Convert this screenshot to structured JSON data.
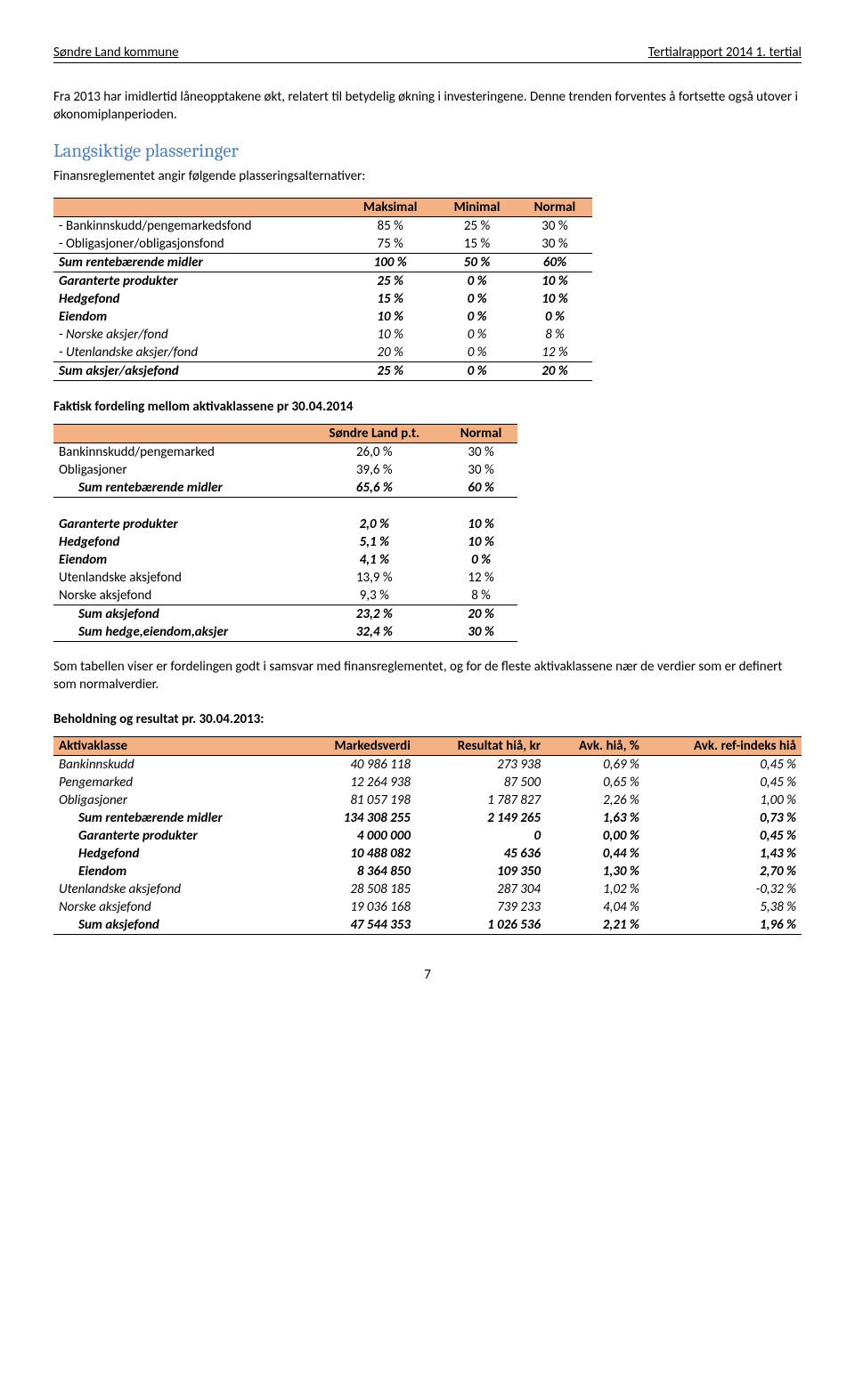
{
  "header": {
    "left": "Søndre Land kommune",
    "right": "Tertialrapport 2014 1. tertial"
  },
  "intro": "Fra 2013 har imidlertid låneopptakene økt, relatert til betydelig økning i investeringene. Denne trenden forventes å fortsette også utover i økonomiplanperioden.",
  "section_title": "Langsiktige plasseringer",
  "section_sub": "Finansreglementet angir følgende plasseringsalternativer:",
  "t1": {
    "cols": [
      "",
      "Maksimal",
      "Minimal",
      "Normal"
    ],
    "rows": [
      {
        "label": "- Bankinnskudd/pengemarkedsfond",
        "v": [
          "85 %",
          "25 %",
          "30 %"
        ],
        "style": ""
      },
      {
        "label": "- Obligasjoner/obligasjonsfond",
        "v": [
          "75 %",
          "15 %",
          "30 %"
        ],
        "style": ""
      },
      {
        "label": "Sum rentebærende midler",
        "v": [
          "100 %",
          "50 %",
          "60%"
        ],
        "style": "bolditalic btbb"
      },
      {
        "label": "Garanterte produkter",
        "v": [
          "25 %",
          "0 %",
          "10 %"
        ],
        "style": "bolditalic"
      },
      {
        "label": "Hedgefond",
        "v": [
          "15 %",
          "0 %",
          "10 %"
        ],
        "style": "bolditalic"
      },
      {
        "label": "Eiendom",
        "v": [
          "10 %",
          "0 %",
          "0 %"
        ],
        "style": "bolditalic"
      },
      {
        "label": "- Norske aksjer/fond",
        "v": [
          "10 %",
          "0 %",
          "8 %"
        ],
        "style": "italic"
      },
      {
        "label": "- Utenlandske aksjer/fond",
        "v": [
          "20 %",
          "0 %",
          "12 %"
        ],
        "style": "italic"
      },
      {
        "label": "Sum aksjer/aksjefond",
        "v": [
          "25 %",
          "0 %",
          "20 %"
        ],
        "style": "bolditalic btbb"
      }
    ]
  },
  "t2_caption": "Faktisk fordeling mellom aktivaklassene pr 30.04.2014",
  "t2": {
    "cols": [
      "",
      "Søndre Land p.t.",
      "Normal"
    ],
    "rows": [
      {
        "label": "Bankinnskudd/pengemarked",
        "v": [
          "26,0 %",
          "30 %"
        ],
        "style": ""
      },
      {
        "label": "Obligasjoner",
        "v": [
          "39,6 %",
          "30 %"
        ],
        "style": ""
      },
      {
        "label": "Sum rentebærende midler",
        "v": [
          "65,6 %",
          "60 %"
        ],
        "style": "bolditalic indent bb"
      },
      {
        "label": "",
        "v": [
          "",
          ""
        ],
        "style": "blank"
      },
      {
        "label": "Garanterte produkter",
        "v": [
          "2,0 %",
          "10 %"
        ],
        "style": "bolditalic"
      },
      {
        "label": "Hedgefond",
        "v": [
          "5,1 %",
          "10 %"
        ],
        "style": "bolditalic"
      },
      {
        "label": "Eiendom",
        "v": [
          "4,1 %",
          "0 %"
        ],
        "style": "bolditalic"
      },
      {
        "label": "Utenlandske aksjefond",
        "v": [
          "13,9 %",
          "12 %"
        ],
        "style": ""
      },
      {
        "label": "Norske aksjefond",
        "v": [
          "9,3 %",
          "8 %"
        ],
        "style": "bb"
      },
      {
        "label": "Sum aksjefond",
        "v": [
          "23,2 %",
          "20 %"
        ],
        "style": "bolditalic indent"
      },
      {
        "label": "Sum hedge,eiendom,aksjer",
        "v": [
          "32,4 %",
          "30 %"
        ],
        "style": "bolditalic indent bb"
      }
    ]
  },
  "para2": "Som tabellen viser er fordelingen godt i samsvar med finansreglementet, og for de fleste aktivaklassene nær de verdier som er definert som normalverdier.",
  "t3_caption": "Beholdning og resultat pr. 30.04.2013:",
  "t3": {
    "cols": [
      "Aktivaklasse",
      "Markedsverdi",
      "Resultat hiå, kr",
      "Avk. hiå, %",
      "Avk. ref-indeks hiå"
    ],
    "rows": [
      {
        "label": "Bankinnskudd",
        "v": [
          "40 986 118",
          "273 938",
          "0,69 %",
          "0,45 %"
        ],
        "style": "italic"
      },
      {
        "label": "Pengemarked",
        "v": [
          "12 264 938",
          "87 500",
          "0,65 %",
          "0,45 %"
        ],
        "style": "italic"
      },
      {
        "label": "Obligasjoner",
        "v": [
          "81 057 198",
          "1 787 827",
          "2,26 %",
          "1,00 %"
        ],
        "style": "italic"
      },
      {
        "label": "Sum rentebærende midler",
        "v": [
          "134 308 255",
          "2 149 265",
          "1,63 %",
          "0,73 %"
        ],
        "style": "bolditalic indent"
      },
      {
        "label": "Garanterte produkter",
        "v": [
          "4 000 000",
          "0",
          "0,00 %",
          "0,45 %"
        ],
        "style": "bolditalic indent"
      },
      {
        "label": "Hedgefond",
        "v": [
          "10 488 082",
          "45 636",
          "0,44 %",
          "1,43 %"
        ],
        "style": "bolditalic indent"
      },
      {
        "label": "Eiendom",
        "v": [
          "8 364 850",
          "109 350",
          "1,30 %",
          "2,70 %"
        ],
        "style": "bolditalic indent"
      },
      {
        "label": "Utenlandske aksjefond",
        "v": [
          "28 508 185",
          "287 304",
          "1,02 %",
          "-0,32 %"
        ],
        "style": "italic"
      },
      {
        "label": "Norske aksjefond",
        "v": [
          "19 036 168",
          "739 233",
          "4,04 %",
          "5,38 %"
        ],
        "style": "italic"
      },
      {
        "label": "Sum aksjefond",
        "v": [
          "47 544 353",
          "1 026 536",
          "2,21 %",
          "1,96 %"
        ],
        "style": "bolditalic indent bb"
      }
    ]
  },
  "page_num": "7"
}
